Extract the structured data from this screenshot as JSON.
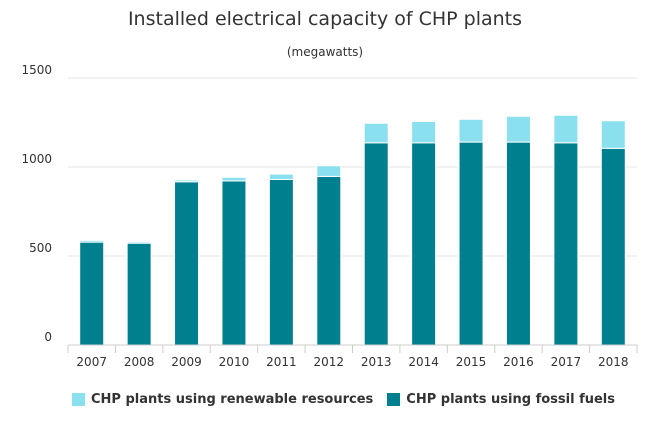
{
  "chart_data": {
    "type": "bar",
    "stacked": true,
    "title": "Installed electrical capacity of CHP plants",
    "subtitle": "(megawatts)",
    "categories": [
      "2007",
      "2008",
      "2009",
      "2010",
      "2011",
      "2012",
      "2013",
      "2014",
      "2015",
      "2016",
      "2017",
      "2018"
    ],
    "series": [
      {
        "name": "CHP plants using fossil fuels",
        "color": "#00808f",
        "values": [
          578,
          572,
          917,
          922,
          930,
          947,
          1136,
          1136,
          1140,
          1140,
          1136,
          1105
        ]
      },
      {
        "name": "CHP plants using renewable resources",
        "color": "#8ae0ef",
        "values": [
          10,
          8,
          10,
          20,
          30,
          60,
          110,
          120,
          128,
          145,
          155,
          155
        ]
      }
    ],
    "ylim": [
      0,
      1500
    ],
    "yticks": [
      0,
      500,
      1000,
      1500
    ],
    "grid": true,
    "legend_position": "bottom-left",
    "legend_order": [
      "CHP plants using renewable resources",
      "CHP plants using fossil fuels"
    ]
  }
}
